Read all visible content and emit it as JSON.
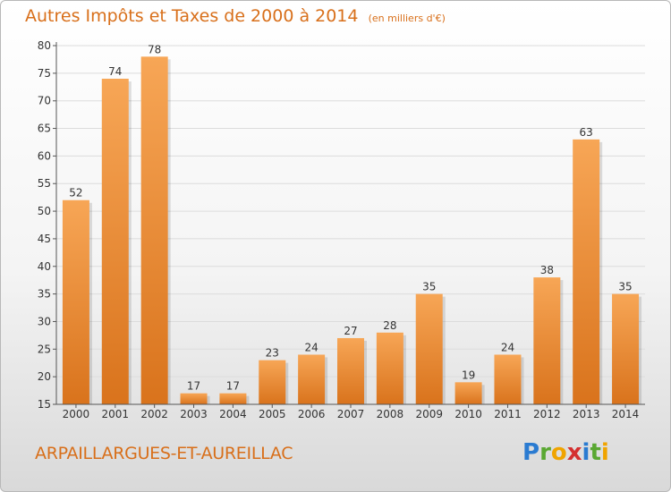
{
  "header": {
    "title": "Autres Impôts et Taxes de 2000 à 2014",
    "unit": "(en milliers d'€)"
  },
  "commune": "ARPAILLARGUES-ET-AUREILLAC",
  "logo": {
    "text": "Proxiti",
    "letters": [
      "P",
      "r",
      "o",
      "x",
      "i",
      "t",
      "i"
    ],
    "colors": [
      "#2a7bd1",
      "#5aa832",
      "#f0a400",
      "#d43030",
      "#2a7bd1",
      "#5aa832",
      "#f0a400"
    ]
  },
  "colors": {
    "bar_top": "#f7a656",
    "bar_bottom": "#d9731c",
    "title": "#d86f1a"
  },
  "chart_data": {
    "type": "bar",
    "categories": [
      "2000",
      "2001",
      "2002",
      "2003",
      "2004",
      "2005",
      "2006",
      "2007",
      "2008",
      "2009",
      "2010",
      "2011",
      "2012",
      "2013",
      "2014"
    ],
    "values": [
      52,
      74,
      78,
      17,
      17,
      23,
      24,
      27,
      28,
      35,
      19,
      24,
      38,
      63,
      35
    ],
    "value_labels": [
      "52",
      "74",
      "78",
      "17",
      "17",
      "23",
      "24",
      "27",
      "28",
      "35",
      "19",
      "24",
      "38",
      "63",
      "35"
    ],
    "ylim": [
      15,
      80
    ],
    "yticks": [
      15,
      20,
      25,
      30,
      35,
      40,
      45,
      50,
      55,
      60,
      65,
      70,
      75,
      80
    ],
    "ytick_labels": [
      "15",
      "20",
      "25",
      "30",
      "35",
      "40",
      "45",
      "50",
      "55",
      "60",
      "65",
      "70",
      "75",
      "80"
    ],
    "grid": true
  }
}
